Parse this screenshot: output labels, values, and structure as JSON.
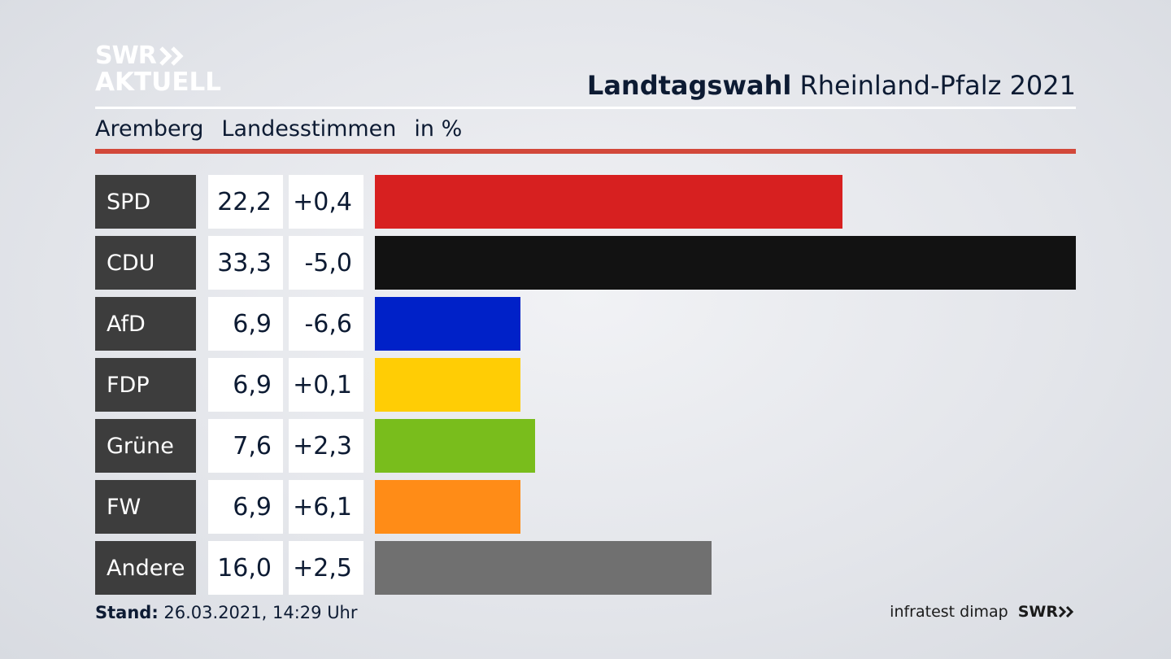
{
  "logo": {
    "line1": "SWR",
    "line2": "AKTUELL"
  },
  "header": {
    "title_bold": "Landtagswahl",
    "title_rest": "Rheinland-Pfalz 2021"
  },
  "subtitle": {
    "place": "Aremberg",
    "type": "Landesstimmen",
    "unit": "in %"
  },
  "chart_data": {
    "type": "bar",
    "orientation": "horizontal",
    "categories": [
      "SPD",
      "CDU",
      "AfD",
      "FDP",
      "Grüne",
      "FW",
      "Andere"
    ],
    "values": [
      22.2,
      33.3,
      6.9,
      6.9,
      7.6,
      6.9,
      16.0
    ],
    "value_labels": [
      "22,2",
      "33,3",
      "6,9",
      "6,9",
      "7,6",
      "6,9",
      "16,0"
    ],
    "changes": [
      0.4,
      -5.0,
      -6.6,
      0.1,
      2.3,
      6.1,
      2.5
    ],
    "change_labels": [
      "+0,4",
      "-5,0",
      "-6,6",
      "+0,1",
      "+2,3",
      "+6,1",
      "+2,5"
    ],
    "colors": [
      "#d72020",
      "#121212",
      "#0021c8",
      "#ffcd05",
      "#79bd1c",
      "#ff8c17",
      "#707070"
    ],
    "xlim": [
      0,
      33.3
    ]
  },
  "footer": {
    "label": "Stand:",
    "timestamp": "26.03.2021, 14:29 Uhr"
  },
  "source": {
    "label": "infratest dimap",
    "brand": "SWR"
  }
}
